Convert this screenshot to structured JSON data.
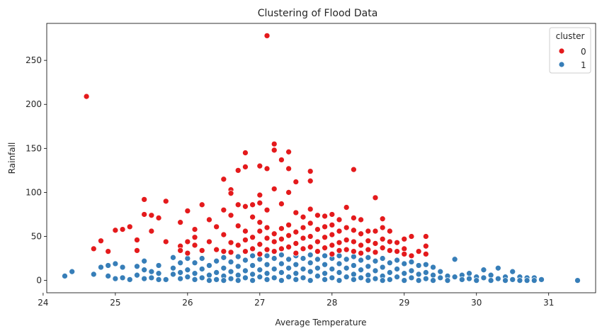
{
  "chart_data": {
    "type": "scatter",
    "title": "Clustering of Flood Data",
    "xlabel": "Average Temperature",
    "ylabel": "Rainfall",
    "xlim": [
      24.05,
      31.65
    ],
    "ylim": [
      -14,
      292
    ],
    "xticks": [
      24,
      25,
      26,
      27,
      28,
      29,
      30,
      31
    ],
    "yticks": [
      0,
      50,
      100,
      150,
      200,
      250
    ],
    "grid": false,
    "legend": {
      "title": "cluster",
      "placement": "top-right",
      "entries": [
        {
          "label": "0",
          "color": "#e41a1c"
        },
        {
          "label": "1",
          "color": "#377eb8"
        }
      ]
    },
    "series": [
      {
        "name": "0",
        "color": "#e41a1c",
        "points": [
          [
            24.6,
            209
          ],
          [
            27.1,
            278
          ],
          [
            24.7,
            36
          ],
          [
            24.8,
            45
          ],
          [
            24.9,
            33
          ],
          [
            25.0,
            57
          ],
          [
            25.1,
            58
          ],
          [
            25.2,
            61
          ],
          [
            25.3,
            46
          ],
          [
            25.3,
            34
          ],
          [
            25.4,
            92
          ],
          [
            25.4,
            75
          ],
          [
            25.5,
            74
          ],
          [
            25.5,
            56
          ],
          [
            25.6,
            71
          ],
          [
            25.7,
            90
          ],
          [
            25.7,
            44
          ],
          [
            25.9,
            66
          ],
          [
            25.9,
            39
          ],
          [
            25.9,
            34
          ],
          [
            26.0,
            79
          ],
          [
            26.0,
            44
          ],
          [
            26.0,
            31
          ],
          [
            26.1,
            58
          ],
          [
            26.1,
            49
          ],
          [
            26.1,
            40
          ],
          [
            26.2,
            86
          ],
          [
            26.2,
            34
          ],
          [
            26.3,
            69
          ],
          [
            26.3,
            44
          ],
          [
            26.4,
            61
          ],
          [
            26.4,
            35
          ],
          [
            26.5,
            115
          ],
          [
            26.5,
            80
          ],
          [
            26.5,
            52
          ],
          [
            26.5,
            33
          ],
          [
            26.6,
            103
          ],
          [
            26.6,
            99
          ],
          [
            26.6,
            74
          ],
          [
            26.6,
            43
          ],
          [
            26.6,
            32
          ],
          [
            26.7,
            125
          ],
          [
            26.7,
            86
          ],
          [
            26.7,
            62
          ],
          [
            26.7,
            40
          ],
          [
            26.8,
            145
          ],
          [
            26.8,
            129
          ],
          [
            26.8,
            84
          ],
          [
            26.8,
            56
          ],
          [
            26.8,
            46
          ],
          [
            26.8,
            33
          ],
          [
            26.9,
            86
          ],
          [
            26.9,
            72
          ],
          [
            26.9,
            49
          ],
          [
            26.9,
            36
          ],
          [
            27.0,
            130
          ],
          [
            27.0,
            97
          ],
          [
            27.0,
            88
          ],
          [
            27.0,
            66
          ],
          [
            27.0,
            56
          ],
          [
            27.0,
            41
          ],
          [
            27.0,
            30
          ],
          [
            27.1,
            127
          ],
          [
            27.1,
            80
          ],
          [
            27.1,
            60
          ],
          [
            27.1,
            48
          ],
          [
            27.1,
            35
          ],
          [
            27.2,
            155
          ],
          [
            27.2,
            148
          ],
          [
            27.2,
            104
          ],
          [
            27.2,
            53
          ],
          [
            27.2,
            44
          ],
          [
            27.2,
            33
          ],
          [
            27.3,
            137
          ],
          [
            27.3,
            87
          ],
          [
            27.3,
            59
          ],
          [
            27.3,
            47
          ],
          [
            27.3,
            36
          ],
          [
            27.4,
            146
          ],
          [
            27.4,
            127
          ],
          [
            27.4,
            100
          ],
          [
            27.4,
            63
          ],
          [
            27.4,
            51
          ],
          [
            27.4,
            38
          ],
          [
            27.5,
            112
          ],
          [
            27.5,
            77
          ],
          [
            27.5,
            55
          ],
          [
            27.5,
            42
          ],
          [
            27.5,
            31
          ],
          [
            27.6,
            72
          ],
          [
            27.6,
            60
          ],
          [
            27.6,
            48
          ],
          [
            27.6,
            36
          ],
          [
            27.7,
            124
          ],
          [
            27.7,
            113
          ],
          [
            27.7,
            81
          ],
          [
            27.7,
            65
          ],
          [
            27.7,
            50
          ],
          [
            27.7,
            38
          ],
          [
            27.8,
            74
          ],
          [
            27.8,
            58
          ],
          [
            27.8,
            44
          ],
          [
            27.8,
            33
          ],
          [
            27.9,
            73
          ],
          [
            27.9,
            61
          ],
          [
            27.9,
            49
          ],
          [
            27.9,
            37
          ],
          [
            28.0,
            75
          ],
          [
            28.0,
            63
          ],
          [
            28.0,
            52
          ],
          [
            28.0,
            40
          ],
          [
            28.0,
            30
          ],
          [
            28.1,
            69
          ],
          [
            28.1,
            56
          ],
          [
            28.1,
            43
          ],
          [
            28.1,
            34
          ],
          [
            28.2,
            83
          ],
          [
            28.2,
            60
          ],
          [
            28.2,
            46
          ],
          [
            28.2,
            35
          ],
          [
            28.3,
            126
          ],
          [
            28.3,
            71
          ],
          [
            28.3,
            57
          ],
          [
            28.3,
            44
          ],
          [
            28.3,
            33
          ],
          [
            28.4,
            69
          ],
          [
            28.4,
            53
          ],
          [
            28.4,
            40
          ],
          [
            28.4,
            31
          ],
          [
            28.5,
            56
          ],
          [
            28.5,
            45
          ],
          [
            28.5,
            35
          ],
          [
            28.6,
            94
          ],
          [
            28.6,
            56
          ],
          [
            28.6,
            42
          ],
          [
            28.6,
            32
          ],
          [
            28.7,
            70
          ],
          [
            28.7,
            60
          ],
          [
            28.7,
            47
          ],
          [
            28.7,
            37
          ],
          [
            28.8,
            56
          ],
          [
            28.8,
            44
          ],
          [
            28.8,
            34
          ],
          [
            28.9,
            43
          ],
          [
            28.9,
            33
          ],
          [
            29.0,
            47
          ],
          [
            29.0,
            36
          ],
          [
            29.0,
            30
          ],
          [
            29.1,
            50
          ],
          [
            29.1,
            28
          ],
          [
            29.2,
            33
          ],
          [
            29.3,
            50
          ],
          [
            29.3,
            39
          ],
          [
            29.3,
            30
          ]
        ]
      },
      {
        "name": "1",
        "color": "#377eb8",
        "points": [
          [
            24.3,
            5
          ],
          [
            24.4,
            10
          ],
          [
            24.7,
            7
          ],
          [
            24.8,
            15
          ],
          [
            24.9,
            17
          ],
          [
            24.9,
            5
          ],
          [
            25.0,
            19
          ],
          [
            25.0,
            2
          ],
          [
            25.1,
            15
          ],
          [
            25.1,
            3
          ],
          [
            25.2,
            1
          ],
          [
            25.3,
            16
          ],
          [
            25.3,
            6
          ],
          [
            25.4,
            22
          ],
          [
            25.4,
            12
          ],
          [
            25.4,
            2
          ],
          [
            25.5,
            10
          ],
          [
            25.5,
            3
          ],
          [
            25.6,
            17
          ],
          [
            25.6,
            8
          ],
          [
            25.6,
            1
          ],
          [
            25.7,
            1
          ],
          [
            25.8,
            7
          ],
          [
            25.8,
            26
          ],
          [
            25.8,
            14
          ],
          [
            25.9,
            20
          ],
          [
            25.9,
            9
          ],
          [
            25.9,
            2
          ],
          [
            26.0,
            25
          ],
          [
            26.0,
            12
          ],
          [
            26.0,
            4
          ],
          [
            26.1,
            20
          ],
          [
            26.1,
            8
          ],
          [
            26.1,
            1
          ],
          [
            26.2,
            25
          ],
          [
            26.2,
            13
          ],
          [
            26.2,
            3
          ],
          [
            26.3,
            17
          ],
          [
            26.3,
            6
          ],
          [
            26.3,
            0
          ],
          [
            26.4,
            22
          ],
          [
            26.4,
            9
          ],
          [
            26.4,
            1
          ],
          [
            26.5,
            26
          ],
          [
            26.5,
            14
          ],
          [
            26.5,
            5
          ],
          [
            26.5,
            0
          ],
          [
            26.6,
            21
          ],
          [
            26.6,
            10
          ],
          [
            26.6,
            2
          ],
          [
            26.7,
            27
          ],
          [
            26.7,
            16
          ],
          [
            26.7,
            6
          ],
          [
            26.7,
            0
          ],
          [
            26.8,
            23
          ],
          [
            26.8,
            11
          ],
          [
            26.8,
            3
          ],
          [
            26.9,
            28
          ],
          [
            26.9,
            17
          ],
          [
            26.9,
            7
          ],
          [
            26.9,
            0
          ],
          [
            27.0,
            24
          ],
          [
            27.0,
            12
          ],
          [
            27.0,
            4
          ],
          [
            27.1,
            28
          ],
          [
            27.1,
            18
          ],
          [
            27.1,
            8
          ],
          [
            27.1,
            1
          ],
          [
            27.2,
            25
          ],
          [
            27.2,
            13
          ],
          [
            27.2,
            3
          ],
          [
            27.3,
            29
          ],
          [
            27.3,
            19
          ],
          [
            27.3,
            9
          ],
          [
            27.3,
            0
          ],
          [
            27.4,
            24
          ],
          [
            27.4,
            14
          ],
          [
            27.4,
            4
          ],
          [
            27.5,
            28
          ],
          [
            27.5,
            18
          ],
          [
            27.5,
            8
          ],
          [
            27.5,
            1
          ],
          [
            27.6,
            25
          ],
          [
            27.6,
            13
          ],
          [
            27.6,
            3
          ],
          [
            27.7,
            29
          ],
          [
            27.7,
            20
          ],
          [
            27.7,
            10
          ],
          [
            27.7,
            0
          ],
          [
            27.8,
            24
          ],
          [
            27.8,
            14
          ],
          [
            27.8,
            5
          ],
          [
            27.9,
            28
          ],
          [
            27.9,
            18
          ],
          [
            27.9,
            8
          ],
          [
            27.9,
            1
          ],
          [
            28.0,
            25
          ],
          [
            28.0,
            13
          ],
          [
            28.0,
            3
          ],
          [
            28.1,
            28
          ],
          [
            28.1,
            19
          ],
          [
            28.1,
            9
          ],
          [
            28.1,
            0
          ],
          [
            28.2,
            24
          ],
          [
            28.2,
            14
          ],
          [
            28.2,
            4
          ],
          [
            28.3,
            27
          ],
          [
            28.3,
            17
          ],
          [
            28.3,
            7
          ],
          [
            28.3,
            1
          ],
          [
            28.4,
            23
          ],
          [
            28.4,
            12
          ],
          [
            28.4,
            3
          ],
          [
            28.5,
            26
          ],
          [
            28.5,
            16
          ],
          [
            28.5,
            6
          ],
          [
            28.5,
            0
          ],
          [
            28.6,
            22
          ],
          [
            28.6,
            11
          ],
          [
            28.6,
            2
          ],
          [
            28.7,
            25
          ],
          [
            28.7,
            15
          ],
          [
            28.7,
            5
          ],
          [
            28.7,
            0
          ],
          [
            28.8,
            20
          ],
          [
            28.8,
            9
          ],
          [
            28.8,
            1
          ],
          [
            28.9,
            23
          ],
          [
            28.9,
            13
          ],
          [
            28.9,
            4
          ],
          [
            29.0,
            19
          ],
          [
            29.0,
            8
          ],
          [
            29.0,
            0
          ],
          [
            29.1,
            21
          ],
          [
            29.1,
            11
          ],
          [
            29.1,
            3
          ],
          [
            29.2,
            17
          ],
          [
            29.2,
            7
          ],
          [
            29.2,
            0
          ],
          [
            29.3,
            18
          ],
          [
            29.3,
            9
          ],
          [
            29.3,
            2
          ],
          [
            29.4,
            15
          ],
          [
            29.4,
            6
          ],
          [
            29.4,
            0
          ],
          [
            29.5,
            10
          ],
          [
            29.5,
            3
          ],
          [
            29.6,
            5
          ],
          [
            29.6,
            0
          ],
          [
            29.7,
            24
          ],
          [
            29.7,
            4
          ],
          [
            29.8,
            6
          ],
          [
            29.8,
            1
          ],
          [
            29.9,
            8
          ],
          [
            29.9,
            2
          ],
          [
            30.0,
            4
          ],
          [
            30.0,
            0
          ],
          [
            30.1,
            12
          ],
          [
            30.1,
            3
          ],
          [
            30.2,
            6
          ],
          [
            30.2,
            0
          ],
          [
            30.3,
            14
          ],
          [
            30.3,
            2
          ],
          [
            30.4,
            4
          ],
          [
            30.4,
            0
          ],
          [
            30.5,
            10
          ],
          [
            30.5,
            1
          ],
          [
            30.6,
            4
          ],
          [
            30.6,
            0
          ],
          [
            30.7,
            3
          ],
          [
            30.7,
            0
          ],
          [
            30.8,
            3
          ],
          [
            30.8,
            0
          ],
          [
            30.9,
            1
          ],
          [
            31.4,
            0
          ]
        ]
      }
    ]
  }
}
